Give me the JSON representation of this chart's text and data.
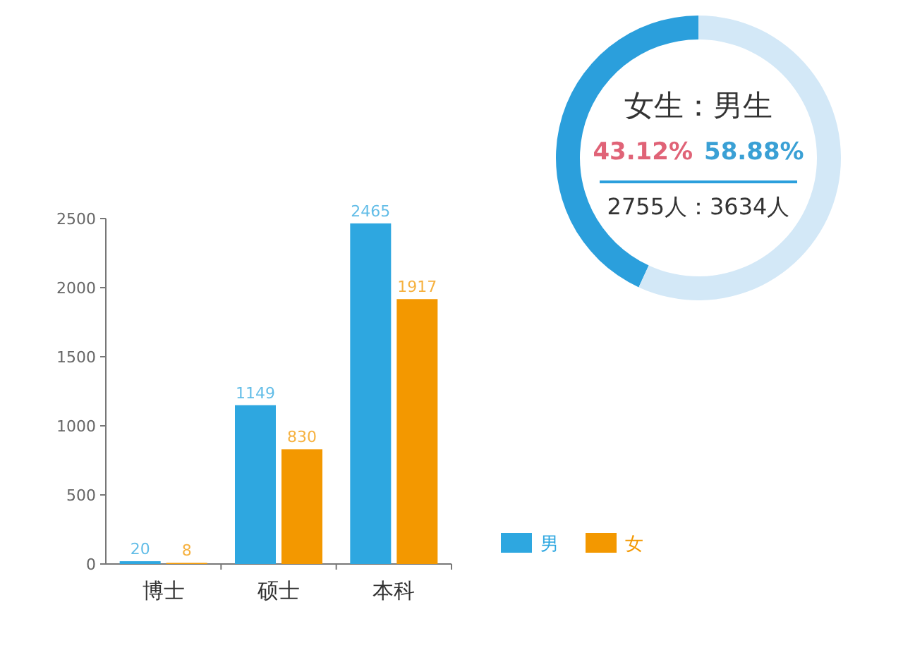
{
  "chart_data": [
    {
      "type": "bar",
      "categories": [
        "博士",
        "硕士",
        "本科"
      ],
      "series": [
        {
          "name": "男",
          "color": "#2ea7e0",
          "values": [
            20,
            1149,
            2465
          ]
        },
        {
          "name": "女",
          "color": "#f39800",
          "values": [
            8,
            830,
            1917
          ]
        }
      ],
      "ylim": [
        0,
        2500
      ],
      "yticks": [
        0,
        500,
        1000,
        1500,
        2000,
        2500
      ],
      "data_labels": true,
      "legend": "bottom right"
    },
    {
      "type": "donut",
      "title": "女生：男生",
      "categories": [
        null,
        null
      ],
      "values": [
        43.12,
        56.88
      ],
      "colors": [
        "#2b9fdc",
        "#d3e8f7"
      ],
      "annotations": [
        "43.12%",
        "58.88%",
        "2755人：3634人"
      ]
    }
  ]
}
